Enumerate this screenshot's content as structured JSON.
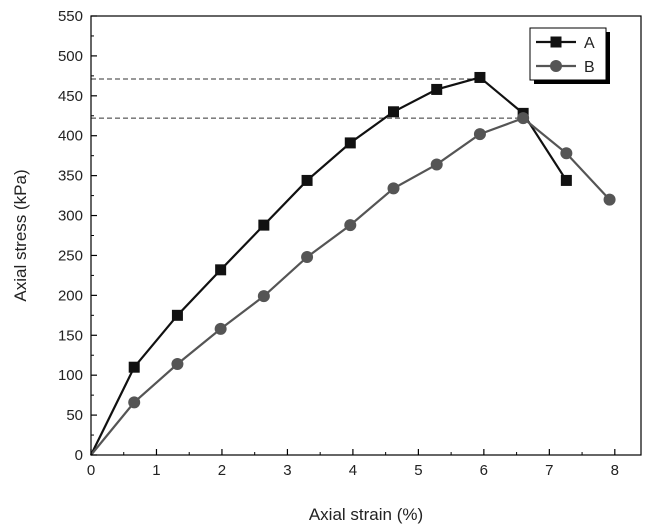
{
  "chart_data": {
    "type": "line",
    "xlabel": "Axial strain (%)",
    "ylabel": "Axial stress (kPa)",
    "xlim": [
      0,
      8.4
    ],
    "ylim": [
      0,
      550
    ],
    "x_ticks": [
      0,
      1,
      2,
      3,
      4,
      5,
      6,
      7,
      8
    ],
    "y_ticks": [
      0,
      50,
      100,
      150,
      200,
      250,
      300,
      350,
      400,
      450,
      500,
      550
    ],
    "grid": false,
    "legend_position": "top-right",
    "series": [
      {
        "name": "A",
        "marker": "square",
        "color": "#111111",
        "x": [
          0,
          0.66,
          1.32,
          1.98,
          2.64,
          3.3,
          3.96,
          4.62,
          5.28,
          5.94,
          6.6,
          7.26
        ],
        "y": [
          0,
          110,
          175,
          232,
          288,
          344,
          391,
          430,
          458,
          473,
          428,
          344
        ]
      },
      {
        "name": "B",
        "marker": "circle",
        "color": "#555555",
        "x": [
          0,
          0.66,
          1.32,
          1.98,
          2.64,
          3.3,
          3.96,
          4.62,
          5.28,
          5.94,
          6.6,
          7.26,
          7.92
        ],
        "y": [
          0,
          66,
          114,
          158,
          199,
          248,
          288,
          334,
          364,
          402,
          422,
          378,
          320
        ]
      }
    ],
    "reference_lines": [
      {
        "y": 471,
        "x_end": 5.94,
        "style": "dashed"
      },
      {
        "y": 422,
        "x_end": 6.6,
        "style": "dashed"
      }
    ]
  }
}
